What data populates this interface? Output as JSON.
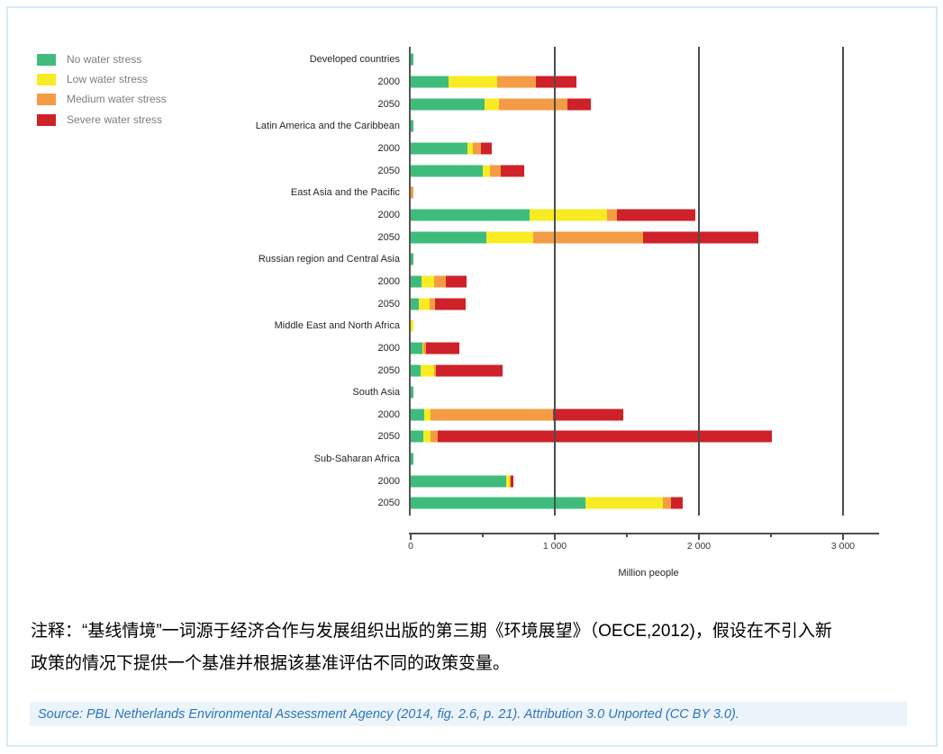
{
  "page": {
    "border_color": "#d6e9f7",
    "background": "#ffffff"
  },
  "chart_data": {
    "type": "bar",
    "orientation": "horizontal",
    "stacked": true,
    "xlabel": "Million people",
    "xlim": [
      0,
      3300
    ],
    "x_ticks": [
      {
        "value": 0,
        "label": "0"
      },
      {
        "value": 1000,
        "label": "1 000"
      },
      {
        "value": 2000,
        "label": "2 000"
      },
      {
        "value": 3000,
        "label": "3 000"
      }
    ],
    "x_minor_ticks": [
      500,
      1500,
      2500
    ],
    "gridlines_at": [
      1000,
      2000,
      3000
    ],
    "grid_color": "#4d4d4d",
    "legend_position": "top-left",
    "legend": [
      {
        "label": "No water stress",
        "color": "#3fbc7c"
      },
      {
        "label": "Low water stress",
        "color": "#f7ec23"
      },
      {
        "label": "Medium water stress",
        "color": "#f39c45"
      },
      {
        "label": "Severe water stress",
        "color": "#ce2129"
      }
    ],
    "series_keys": [
      "No water stress",
      "Low water stress",
      "Medium water stress",
      "Severe water stress"
    ],
    "groups": [
      {
        "region": "Developed countries",
        "marker_color": "#3fbc7c",
        "rows": [
          {
            "year": "2000",
            "values": [
              260,
              340,
              270,
              280
            ]
          },
          {
            "year": "2050",
            "values": [
              510,
              105,
              470,
              165
            ]
          }
        ]
      },
      {
        "region": "Latin America and the Caribbean",
        "marker_color": "#3fbc7c",
        "rows": [
          {
            "year": "2000",
            "values": [
              395,
              35,
              60,
              75
            ]
          },
          {
            "year": "2050",
            "values": [
              500,
              50,
              75,
              160
            ]
          }
        ]
      },
      {
        "region": "East Asia and the Pacific",
        "marker_color": "#f39c45",
        "rows": [
          {
            "year": "2000",
            "values": [
              825,
              535,
              70,
              545
            ]
          },
          {
            "year": "2050",
            "values": [
              525,
              325,
              765,
              800
            ]
          }
        ]
      },
      {
        "region": "Russian region and Central Asia",
        "marker_color": "#3fbc7c",
        "rows": [
          {
            "year": "2000",
            "values": [
              75,
              85,
              85,
              140
            ]
          },
          {
            "year": "2050",
            "values": [
              55,
              75,
              40,
              210
            ]
          }
        ]
      },
      {
        "region": "Middle East and North Africa",
        "marker_color": "#f7ec23",
        "rows": [
          {
            "year": "2000",
            "values": [
              80,
              10,
              15,
              230
            ]
          },
          {
            "year": "2050",
            "values": [
              70,
              95,
              10,
              465
            ]
          }
        ]
      },
      {
        "region": "South Asia",
        "marker_color": "#3fbc7c",
        "rows": [
          {
            "year": "2000",
            "values": [
              95,
              40,
              850,
              490
            ]
          },
          {
            "year": "2050",
            "values": [
              90,
              45,
              50,
              2320
            ]
          }
        ]
      },
      {
        "region": "Sub-Saharan Africa",
        "marker_color": "#3fbc7c",
        "rows": [
          {
            "year": "2000",
            "values": [
              665,
              20,
              10,
              20
            ]
          },
          {
            "year": "2050",
            "values": [
              1215,
              535,
              55,
              80
            ]
          }
        ]
      }
    ]
  },
  "note": {
    "line1": "注释：“基线情境”一词源于经济合作与发展组织出版的第三期《环境展望》（OECE,2012)，假设在不引入新",
    "line2": "政策的情况下提供一个基准并根据该基准评估不同的政策变量。"
  },
  "source": {
    "text": "Source: PBL Netherlands Environmental Assessment Agency (2014, fig. 2.6, p. 21). Attribution 3.0 Unported (CC BY 3.0)."
  }
}
